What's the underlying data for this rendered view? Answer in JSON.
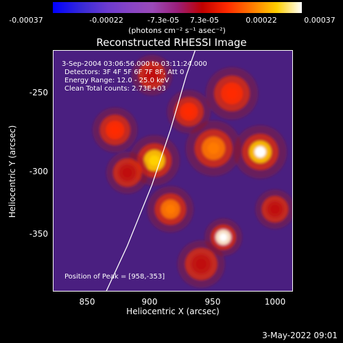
{
  "colorbar": {
    "ticks": [
      "-0.00037",
      "-0.00022",
      "-7.3e-05",
      "7.3e-05",
      "0.00022",
      "0.00037"
    ],
    "units": "(photons cm⁻² s⁻¹ asec⁻²)"
  },
  "chart_data": {
    "type": "heatmap",
    "title": "Reconstructed RHESSI Image",
    "xlabel": "Heliocentric X (arcsec)",
    "ylabel": "Heliocentric Y (arcsec)",
    "xlim": [
      820,
      1014
    ],
    "ylim": [
      -397,
      -200
    ],
    "x_ticks": [
      850,
      900,
      950,
      1000
    ],
    "y_ticks": [
      -250,
      -300,
      -350
    ],
    "grid": false,
    "annotations": [
      "3-Sep-2004 03:06:56.000 to 03:11:24.000",
      "Detectors: 3F 4F 5F 6F 7F 8F, Att 0",
      "Energy Range: 12.0 - 25.0 keV",
      "Clean     Total counts: 2.73E+03"
    ],
    "peak_label": "Position of Peak = [958,-353]",
    "peak": [
      958,
      -353
    ],
    "hotspots": [
      {
        "x": 958,
        "y": -353,
        "intensity": 1.0,
        "width": 8
      },
      {
        "x": 988,
        "y": -283,
        "intensity": 0.9,
        "width": 12
      },
      {
        "x": 902,
        "y": -290,
        "intensity": 0.8,
        "width": 12
      },
      {
        "x": 950,
        "y": -280,
        "intensity": 0.7,
        "width": 14
      },
      {
        "x": 870,
        "y": -265,
        "intensity": 0.6,
        "width": 12
      },
      {
        "x": 915,
        "y": -330,
        "intensity": 0.65,
        "width": 12
      },
      {
        "x": 965,
        "y": -235,
        "intensity": 0.6,
        "width": 14
      },
      {
        "x": 930,
        "y": -250,
        "intensity": 0.55,
        "width": 12
      },
      {
        "x": 880,
        "y": -300,
        "intensity": 0.5,
        "width": 12
      },
      {
        "x": 940,
        "y": -375,
        "intensity": 0.45,
        "width": 14
      },
      {
        "x": 900,
        "y": -220,
        "intensity": 0.45,
        "width": 12
      },
      {
        "x": 1000,
        "y": -330,
        "intensity": 0.4,
        "width": 12
      }
    ],
    "limb_curve": [
      [
        863,
        -397
      ],
      [
        880,
        -360
      ],
      [
        900,
        -310
      ],
      [
        915,
        -265
      ],
      [
        928,
        -220
      ],
      [
        935,
        -200
      ]
    ],
    "colorbar_range": [
      -0.00037,
      0.00037
    ]
  },
  "footer_date": "3-May-2022 09:01"
}
